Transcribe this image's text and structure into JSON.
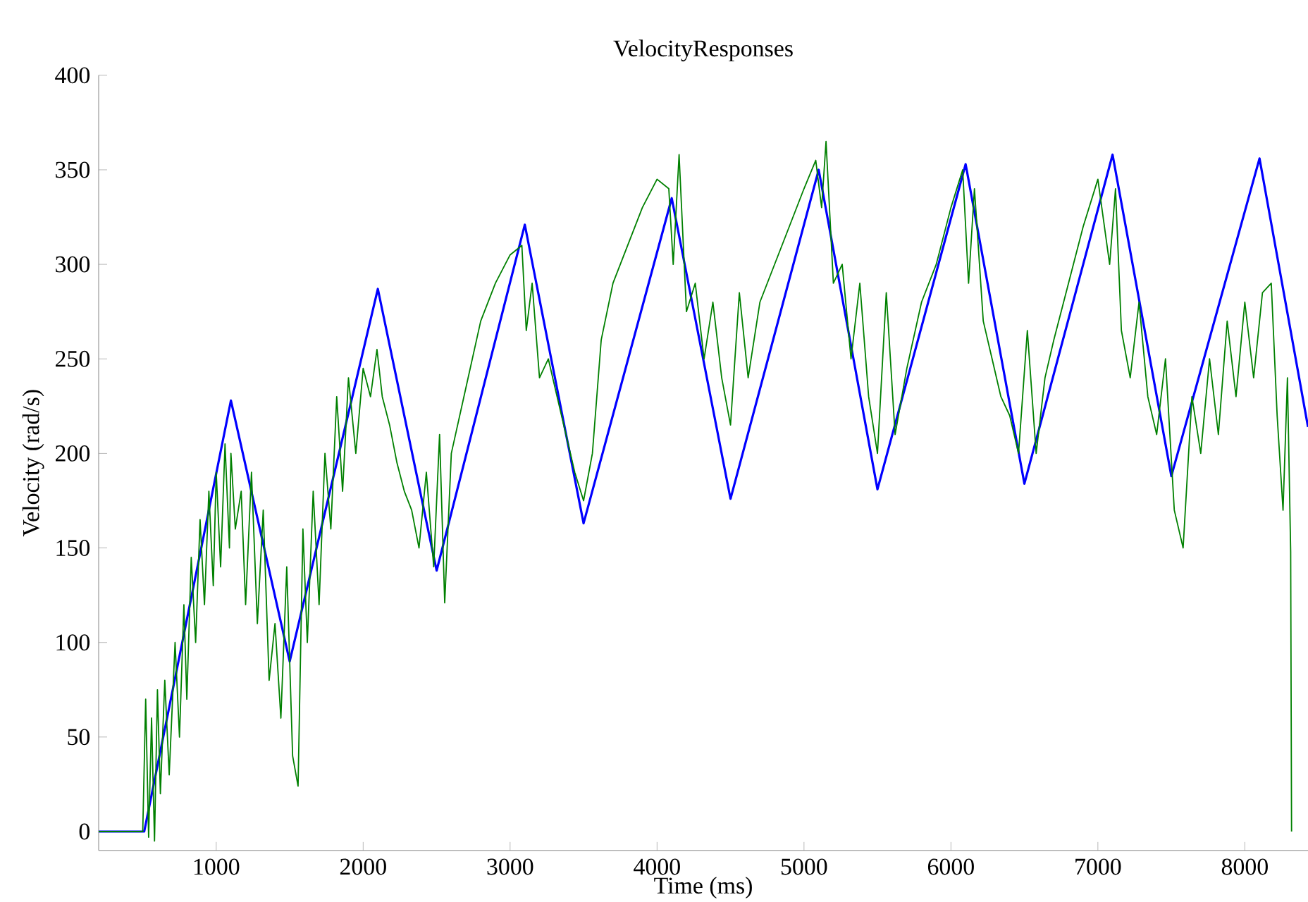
{
  "chart_data": {
    "type": "line",
    "title": "VelocityResponses",
    "xlabel": "Time (ms)",
    "ylabel": "Velocity (rad/s)",
    "xlim": [
      200,
      8430
    ],
    "ylim": [
      -10,
      400
    ],
    "xticks": [
      1000,
      2000,
      3000,
      4000,
      5000,
      6000,
      7000,
      8000
    ],
    "yticks": [
      0,
      50,
      100,
      150,
      200,
      250,
      300,
      350,
      400
    ],
    "grid": false,
    "marker": "none",
    "line_style": "solid",
    "series": [
      {
        "color": "#0000ff",
        "x": [
          200,
          510,
          1100,
          1500,
          2100,
          2500,
          3100,
          3500,
          4100,
          4500,
          5100,
          5500,
          6100,
          6500,
          7100,
          7500,
          8100,
          8430
        ],
        "values": [
          0,
          0,
          228,
          90,
          287,
          138,
          321,
          163,
          335,
          176,
          350,
          181,
          353,
          184,
          358,
          188,
          356,
          214
        ]
      },
      {
        "color": "#008000",
        "x": [
          200,
          500,
          520,
          540,
          560,
          580,
          600,
          620,
          650,
          680,
          720,
          750,
          780,
          800,
          830,
          860,
          890,
          920,
          950,
          980,
          1000,
          1030,
          1060,
          1090,
          1100,
          1130,
          1170,
          1200,
          1240,
          1280,
          1320,
          1360,
          1400,
          1440,
          1480,
          1520,
          1557,
          1590,
          1620,
          1660,
          1700,
          1740,
          1780,
          1820,
          1860,
          1900,
          1950,
          2000,
          2050,
          2094,
          2130,
          2180,
          2230,
          2280,
          2330,
          2380,
          2430,
          2480,
          2520,
          2555,
          2600,
          2700,
          2800,
          2900,
          3000,
          3080,
          3110,
          3150,
          3200,
          3260,
          3320,
          3380,
          3440,
          3500,
          3560,
          3620,
          3700,
          3800,
          3900,
          4000,
          4080,
          4110,
          4150,
          4200,
          4260,
          4320,
          4380,
          4440,
          4500,
          4560,
          4620,
          4700,
          4800,
          4900,
          5000,
          5080,
          5120,
          5150,
          5200,
          5260,
          5320,
          5380,
          5440,
          5500,
          5560,
          5620,
          5700,
          5800,
          5900,
          6000,
          6080,
          6120,
          6160,
          6220,
          6280,
          6340,
          6400,
          6460,
          6520,
          6580,
          6640,
          6700,
          6800,
          6900,
          7000,
          7080,
          7120,
          7160,
          7220,
          7280,
          7340,
          7400,
          7460,
          7520,
          7580,
          7640,
          7700,
          7760,
          7820,
          7880,
          7940,
          8000,
          8060,
          8120,
          8180,
          8220,
          8260,
          8290,
          8312,
          8318
        ],
        "values": [
          0,
          0,
          70,
          -3,
          60,
          -5,
          75,
          20,
          80,
          30,
          100,
          50,
          120,
          70,
          145,
          100,
          165,
          120,
          180,
          130,
          190,
          140,
          205,
          150,
          200,
          160,
          180,
          120,
          190,
          110,
          170,
          80,
          110,
          60,
          140,
          40,
          24,
          160,
          100,
          180,
          120,
          200,
          160,
          230,
          180,
          240,
          200,
          245,
          230,
          255,
          230,
          215,
          195,
          180,
          170,
          150,
          190,
          140,
          210,
          121,
          200,
          235,
          270,
          290,
          305,
          310,
          265,
          290,
          240,
          250,
          230,
          210,
          190,
          175,
          200,
          260,
          290,
          310,
          330,
          345,
          340,
          300,
          358,
          275,
          290,
          250,
          280,
          240,
          215,
          285,
          240,
          280,
          300,
          320,
          340,
          355,
          330,
          365,
          290,
          300,
          250,
          290,
          230,
          200,
          285,
          210,
          245,
          280,
          300,
          330,
          350,
          290,
          340,
          270,
          250,
          230,
          220,
          200,
          265,
          200,
          240,
          260,
          290,
          320,
          345,
          300,
          340,
          265,
          240,
          280,
          230,
          210,
          250,
          170,
          150,
          230,
          200,
          250,
          210,
          270,
          230,
          280,
          240,
          285,
          290,
          220,
          170,
          240,
          148,
          0
        ]
      }
    ]
  }
}
